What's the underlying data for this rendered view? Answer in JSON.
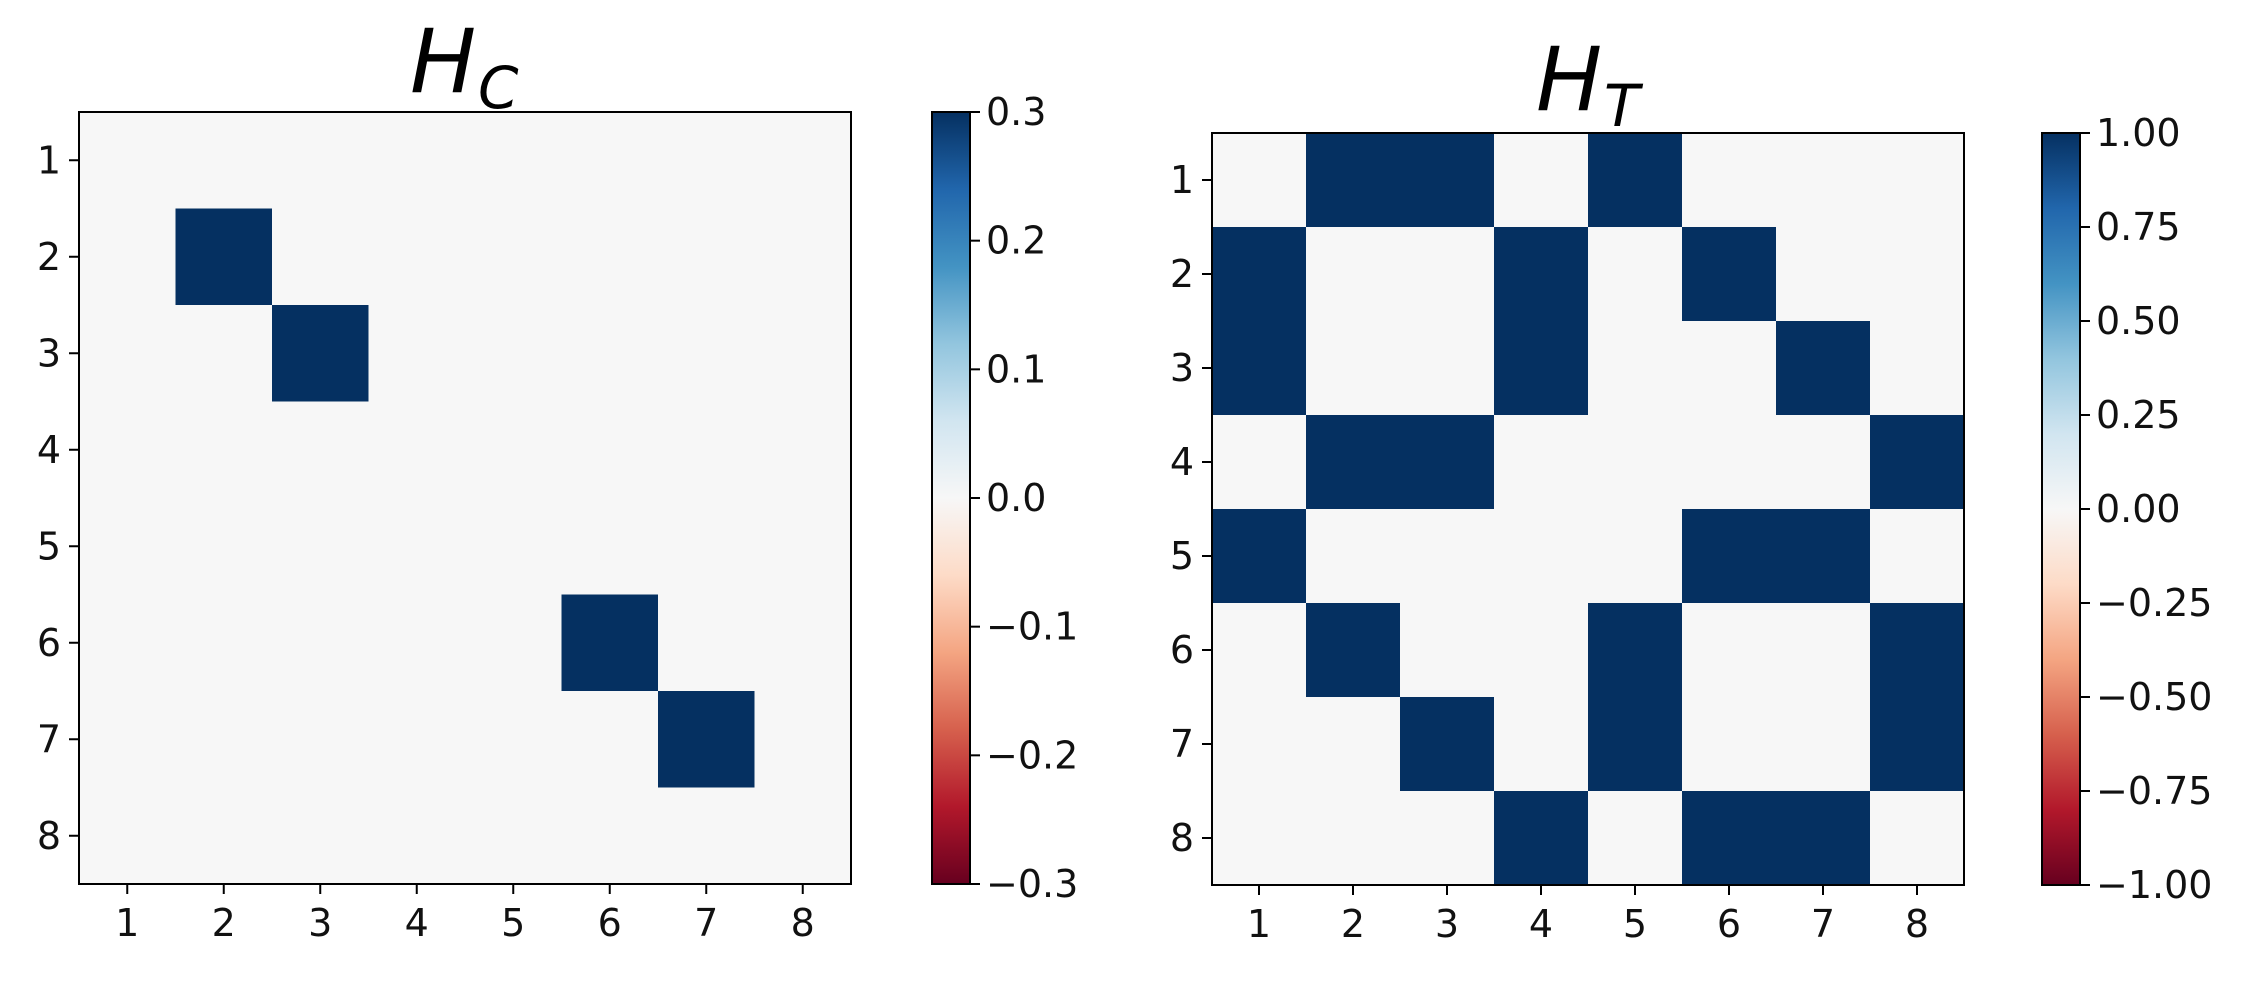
{
  "chart_data": [
    {
      "type": "heatmap",
      "title": "H",
      "title_subscript": "C",
      "x_ticks": [
        "1",
        "2",
        "3",
        "4",
        "5",
        "6",
        "7",
        "8"
      ],
      "y_ticks": [
        "1",
        "2",
        "3",
        "4",
        "5",
        "6",
        "7",
        "8"
      ],
      "values": [
        [
          0,
          0,
          0,
          0,
          0,
          0,
          0,
          0
        ],
        [
          0,
          0.3,
          0,
          0,
          0,
          0,
          0,
          0
        ],
        [
          0,
          0,
          0.3,
          0,
          0,
          0,
          0,
          0
        ],
        [
          0,
          0,
          0,
          0,
          0,
          0,
          0,
          0
        ],
        [
          0,
          0,
          0,
          0,
          0,
          0,
          0,
          0
        ],
        [
          0,
          0,
          0,
          0,
          0,
          0.3,
          0,
          0
        ],
        [
          0,
          0,
          0,
          0,
          0,
          0,
          0.3,
          0
        ],
        [
          0,
          0,
          0,
          0,
          0,
          0,
          0,
          0
        ]
      ],
      "vmin": -0.3,
      "vmax": 0.3,
      "colormap": "RdBu",
      "colorbar_ticks": [
        {
          "value": 0.3,
          "label": "0.3"
        },
        {
          "value": 0.2,
          "label": "0.2"
        },
        {
          "value": 0.1,
          "label": "0.1"
        },
        {
          "value": 0.0,
          "label": "0.0"
        },
        {
          "value": -0.1,
          "label": "−0.1"
        },
        {
          "value": -0.2,
          "label": "−0.2"
        },
        {
          "value": -0.3,
          "label": "−0.3"
        }
      ]
    },
    {
      "type": "heatmap",
      "title": "H",
      "title_subscript": "T",
      "x_ticks": [
        "1",
        "2",
        "3",
        "4",
        "5",
        "6",
        "7",
        "8"
      ],
      "y_ticks": [
        "1",
        "2",
        "3",
        "4",
        "5",
        "6",
        "7",
        "8"
      ],
      "values": [
        [
          0,
          1,
          1,
          0,
          1,
          0,
          0,
          0
        ],
        [
          1,
          0,
          0,
          1,
          0,
          1,
          0,
          0
        ],
        [
          1,
          0,
          0,
          1,
          0,
          0,
          1,
          0
        ],
        [
          0,
          1,
          1,
          0,
          0,
          0,
          0,
          1
        ],
        [
          1,
          0,
          0,
          0,
          0,
          1,
          1,
          0
        ],
        [
          0,
          1,
          0,
          0,
          1,
          0,
          0,
          1
        ],
        [
          0,
          0,
          1,
          0,
          1,
          0,
          0,
          1
        ],
        [
          0,
          0,
          0,
          1,
          0,
          1,
          1,
          0
        ]
      ],
      "vmin": -1.0,
      "vmax": 1.0,
      "colormap": "RdBu",
      "colorbar_ticks": [
        {
          "value": 1.0,
          "label": "1.00"
        },
        {
          "value": 0.75,
          "label": "0.75"
        },
        {
          "value": 0.5,
          "label": "0.50"
        },
        {
          "value": 0.25,
          "label": "0.25"
        },
        {
          "value": 0.0,
          "label": "0.00"
        },
        {
          "value": -0.25,
          "label": "−0.25"
        },
        {
          "value": -0.5,
          "label": "−0.50"
        },
        {
          "value": -0.75,
          "label": "−0.75"
        },
        {
          "value": -1.0,
          "label": "−1.00"
        }
      ]
    }
  ]
}
